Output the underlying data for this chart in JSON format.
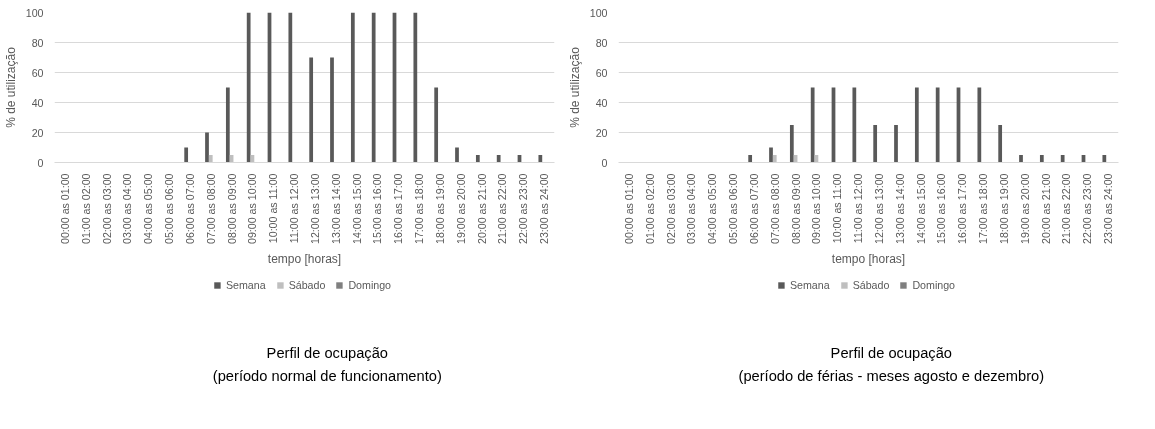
{
  "chart_data": [
    {
      "type": "bar",
      "title": "Perfil de ocupação",
      "subtitle": "(período normal de funcionamento)",
      "xlabel": "tempo [horas]",
      "ylabel": "% de utilização",
      "categories": [
        "00:00 as 01:00",
        "01:00 as 02:00",
        "02:00 as 03:00",
        "03:00 as 04:00",
        "04:00 as 05:00",
        "05:00 as 06:00",
        "06:00 as 07:00",
        "07:00 as 08:00",
        "08:00 as 09:00",
        "09:00 as 10:00",
        "10:00 as 11:00",
        "11:00 as 12:00",
        "12:00 as 13:00",
        "13:00 as 14:00",
        "14:00 as 15:00",
        "15:00 as 16:00",
        "16:00 as 17:00",
        "17:00 as 18:00",
        "18:00 as 19:00",
        "19:00 as 20:00",
        "20:00 as 21:00",
        "21:00 as 22:00",
        "22:00 as 23:00",
        "23:00 as 24:00"
      ],
      "series": [
        {
          "name": "Semana",
          "color": "#595959",
          "values": [
            0,
            0,
            0,
            0,
            0,
            0,
            10,
            20,
            50,
            100,
            100,
            100,
            70,
            70,
            100,
            100,
            100,
            100,
            50,
            10,
            5,
            5,
            5,
            5
          ]
        },
        {
          "name": "Sábado",
          "color": "#bfbfbf",
          "values": [
            0,
            0,
            0,
            0,
            0,
            0,
            0,
            5,
            5,
            5,
            0,
            0,
            0,
            0,
            0,
            0,
            0,
            0,
            0,
            0,
            0,
            0,
            0,
            0
          ]
        },
        {
          "name": "Domingo",
          "color": "#7f7f7f",
          "values": [
            0,
            0,
            0,
            0,
            0,
            0,
            0,
            0,
            0,
            0,
            0,
            0,
            0,
            0,
            0,
            0,
            0,
            0,
            0,
            0,
            0,
            0,
            0,
            0
          ]
        }
      ],
      "ylim": [
        0,
        100
      ],
      "yticks": [
        0,
        20,
        40,
        60,
        80,
        100
      ],
      "grid": "y",
      "legend": "bottom"
    },
    {
      "type": "bar",
      "title": "Perfil de ocupação",
      "subtitle": "(período de férias - meses agosto e dezembro)",
      "xlabel": "tempo [horas]",
      "ylabel": "% de utilização",
      "categories": [
        "00:00 as 01:00",
        "01:00 as 02:00",
        "02:00 as 03:00",
        "03:00 as 04:00",
        "04:00 as 05:00",
        "05:00 as 06:00",
        "06:00 as 07:00",
        "07:00 as 08:00",
        "08:00 as 09:00",
        "09:00 as 10:00",
        "10:00 as 11:00",
        "11:00 as 12:00",
        "12:00 as 13:00",
        "13:00 as 14:00",
        "14:00 as 15:00",
        "15:00 as 16:00",
        "16:00 as 17:00",
        "17:00 as 18:00",
        "18:00 as 19:00",
        "19:00 as 20:00",
        "20:00 as 21:00",
        "21:00 as 22:00",
        "22:00 as 23:00",
        "23:00 as 24:00"
      ],
      "series": [
        {
          "name": "Semana",
          "color": "#595959",
          "values": [
            0,
            0,
            0,
            0,
            0,
            0,
            5,
            10,
            25,
            50,
            50,
            50,
            25,
            25,
            50,
            50,
            50,
            50,
            25,
            5,
            5,
            5,
            5,
            5
          ]
        },
        {
          "name": "Sábado",
          "color": "#bfbfbf",
          "values": [
            0,
            0,
            0,
            0,
            0,
            0,
            0,
            5,
            5,
            5,
            0,
            0,
            0,
            0,
            0,
            0,
            0,
            0,
            0,
            0,
            0,
            0,
            0,
            0
          ]
        },
        {
          "name": "Domingo",
          "color": "#7f7f7f",
          "values": [
            0,
            0,
            0,
            0,
            0,
            0,
            0,
            0,
            0,
            0,
            0,
            0,
            0,
            0,
            0,
            0,
            0,
            0,
            0,
            0,
            0,
            0,
            0,
            0
          ]
        }
      ],
      "ylim": [
        0,
        100
      ],
      "yticks": [
        0,
        20,
        40,
        60,
        80,
        100
      ],
      "grid": "y",
      "legend": "bottom"
    }
  ]
}
